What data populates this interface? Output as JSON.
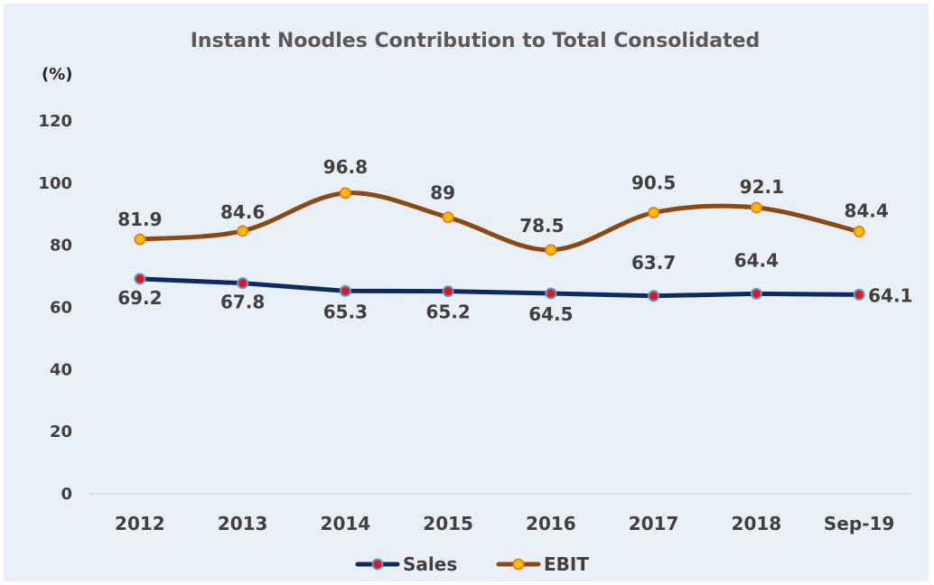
{
  "chart_data": {
    "type": "line",
    "title": "Instant Noodles Contribution to Total Consolidated",
    "unit_label": "(%)",
    "categories": [
      "2012",
      "2013",
      "2014",
      "2015",
      "2016",
      "2017",
      "2018",
      "Sep-19"
    ],
    "ylim": [
      0,
      120
    ],
    "yticks": [
      0,
      20,
      40,
      60,
      80,
      100,
      120
    ],
    "grid": false,
    "legend_position": "bottom",
    "series": [
      {
        "name": "Sales",
        "values": [
          69.2,
          67.8,
          65.3,
          65.2,
          64.5,
          63.7,
          64.4,
          64.1
        ],
        "labels": [
          "69.2",
          "67.8",
          "65.3",
          "65.2",
          "64.5",
          "63.7",
          "64.4",
          "64.1"
        ],
        "line_color": "#0d2b5e",
        "marker_fill": "#e8141c",
        "marker_stroke": "#5b9bd5",
        "smooth": false
      },
      {
        "name": "EBIT",
        "values": [
          81.9,
          84.6,
          96.8,
          89,
          78.5,
          90.5,
          92.1,
          84.4
        ],
        "labels": [
          "81.9",
          "84.6",
          "96.8",
          "89",
          "78.5",
          "90.5",
          "92.1",
          "84.4"
        ],
        "line_color": "#8b4a14",
        "marker_fill": "#ffc000",
        "marker_stroke": "#f07d20",
        "smooth": true
      }
    ]
  }
}
